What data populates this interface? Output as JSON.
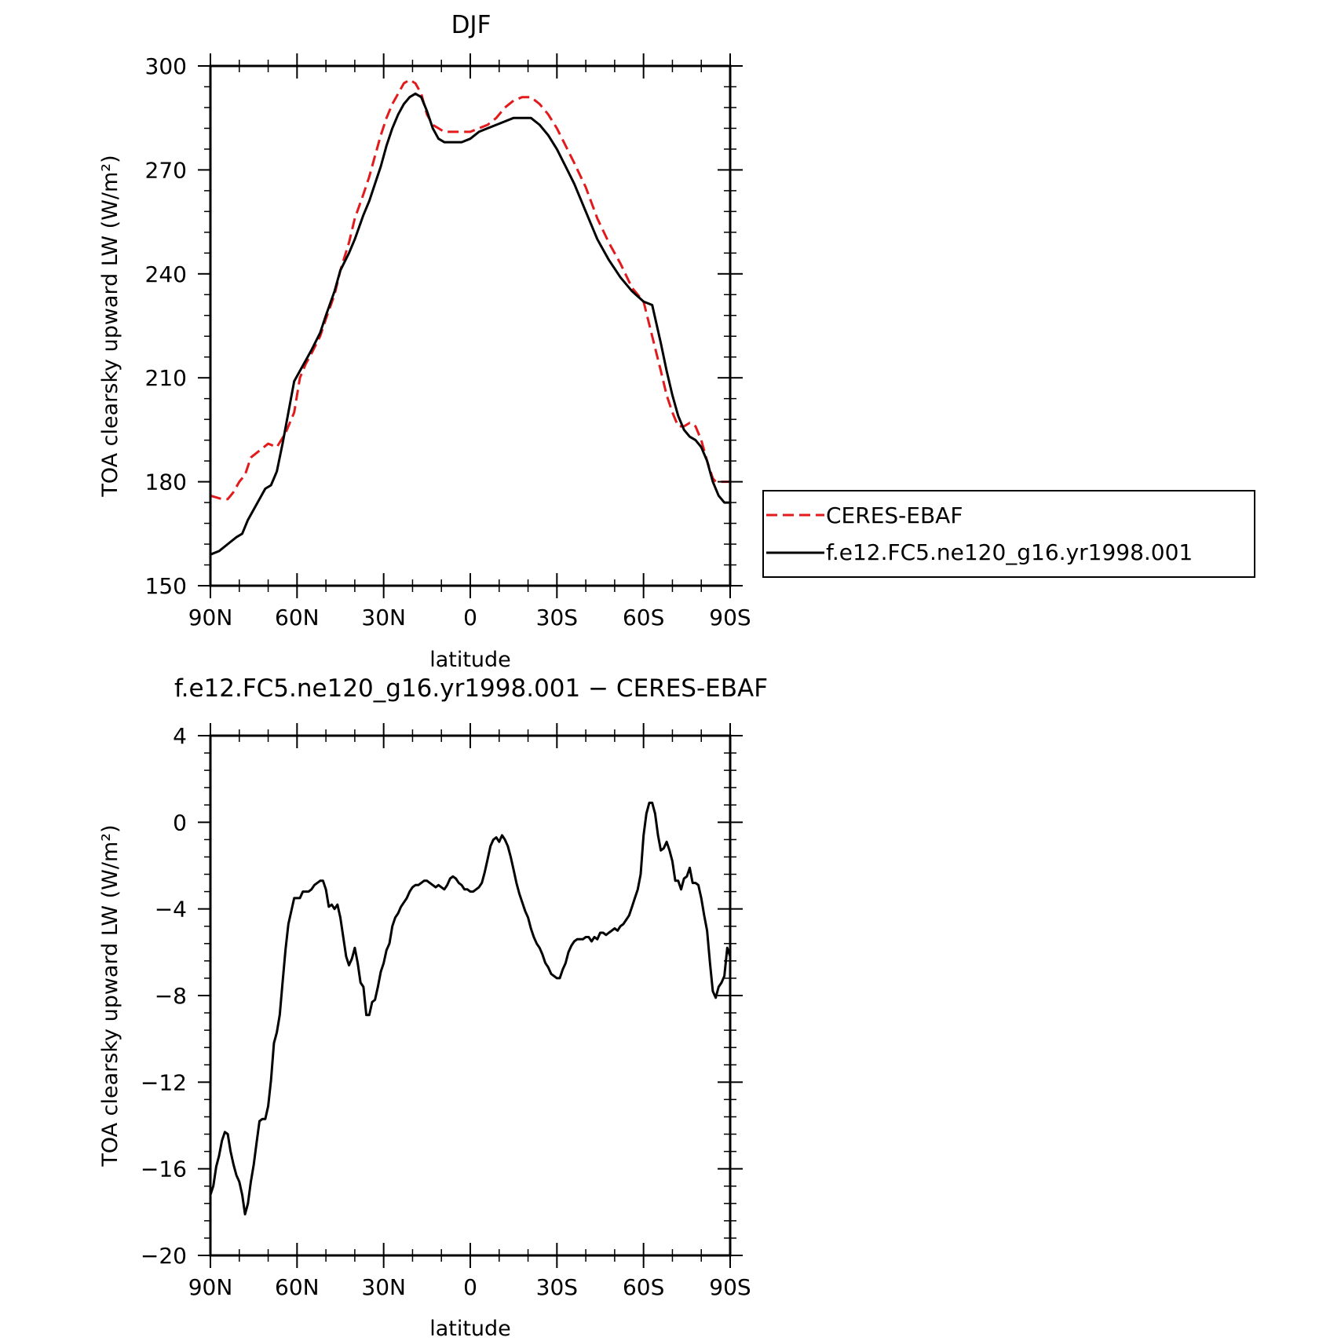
{
  "chart_data": [
    {
      "type": "line",
      "title": "DJF",
      "xlabel": "latitude",
      "ylabel": "TOA clearsky upward LW (W/m²)",
      "xlim": [
        -90,
        90
      ],
      "ylim": [
        150,
        300
      ],
      "xticks": [
        -90,
        -60,
        -30,
        0,
        30,
        60,
        90
      ],
      "xticklabels": [
        "90N",
        "60N",
        "30N",
        "0",
        "30S",
        "60S",
        "90S"
      ],
      "yticks": [
        150,
        180,
        210,
        240,
        270,
        300
      ],
      "yticklabels": [
        "150",
        "180",
        "210",
        "240",
        "270",
        "300"
      ],
      "legend": {
        "placement": "right, outside"
      },
      "series": [
        {
          "name": "CERES-EBAF",
          "color": "#e31a1c",
          "dash": "dashed",
          "x": [
            -90,
            -86,
            -84,
            -82,
            -80,
            -78,
            -76,
            -73,
            -70,
            -67,
            -64,
            -61,
            -59,
            -57,
            -55,
            -52,
            -50,
            -47,
            -45,
            -42,
            -40,
            -37,
            -35,
            -33,
            -31,
            -29,
            -27,
            -25,
            -23,
            -21,
            -19,
            -17,
            -15,
            -13,
            -11,
            -9,
            -7,
            -5,
            -3,
            0,
            3,
            6,
            9,
            12,
            15,
            18,
            21,
            24,
            27,
            30,
            33,
            36,
            40,
            44,
            48,
            52,
            56,
            60,
            63,
            66,
            68,
            70,
            72,
            74,
            76,
            78,
            80,
            82,
            84,
            85,
            86,
            87,
            88,
            90
          ],
          "y": [
            176,
            175,
            175,
            177,
            180,
            182,
            187,
            189,
            191,
            190,
            194,
            200,
            210,
            214,
            217,
            222,
            227,
            234,
            241,
            249,
            256,
            263,
            268,
            274,
            280,
            285,
            289,
            292,
            295,
            296,
            295,
            292,
            286,
            283,
            282,
            281,
            281,
            281,
            281,
            281,
            282,
            283,
            285,
            288,
            290,
            291,
            291,
            289,
            286,
            282,
            277,
            272,
            265,
            256,
            249,
            243,
            236,
            232,
            222,
            212,
            205,
            200,
            196,
            196,
            197,
            196,
            192,
            186,
            181,
            180,
            180,
            180,
            180,
            180
          ]
        },
        {
          "name": "f.e12.FC5.ne120_g16.yr1998.001",
          "color": "#000000",
          "dash": "solid",
          "x": [
            -90,
            -87,
            -84,
            -81,
            -79,
            -77,
            -75,
            -73,
            -71,
            -69,
            -67,
            -65,
            -63,
            -61,
            -59,
            -57,
            -55,
            -52,
            -50,
            -47,
            -45,
            -42,
            -40,
            -37,
            -35,
            -33,
            -31,
            -29,
            -27,
            -25,
            -23,
            -21,
            -19,
            -17,
            -15,
            -13,
            -11,
            -9,
            -7,
            -5,
            -3,
            0,
            3,
            6,
            9,
            12,
            15,
            18,
            21,
            24,
            27,
            30,
            33,
            36,
            40,
            44,
            48,
            52,
            56,
            60,
            63,
            66,
            68,
            70,
            72,
            74,
            76,
            78,
            80,
            82,
            84,
            86,
            88,
            90
          ],
          "y": [
            159,
            160,
            162,
            164,
            165,
            169,
            172,
            175,
            178,
            179,
            183,
            191,
            200,
            209,
            212,
            215,
            218,
            223,
            228,
            235,
            241,
            246,
            250,
            257,
            261,
            266,
            271,
            277,
            282,
            286,
            289,
            291,
            292,
            291,
            287,
            282,
            279,
            278,
            278,
            278,
            278,
            279,
            281,
            282,
            283,
            284,
            285,
            285,
            285,
            283,
            280,
            276,
            271,
            266,
            258,
            250,
            244,
            239,
            235,
            232,
            231,
            220,
            212,
            205,
            199,
            195,
            193,
            192,
            190,
            186,
            180,
            176,
            174,
            174
          ]
        }
      ]
    },
    {
      "type": "line",
      "title": "f.e12.FC5.ne120_g16.yr1998.001 - CERES-EBAF",
      "xlabel": "latitude",
      "ylabel": "TOA clearsky upward LW (W/m²)",
      "xlim": [
        -90,
        90
      ],
      "ylim": [
        -20,
        4
      ],
      "xticks": [
        -90,
        -60,
        -30,
        0,
        30,
        60,
        90
      ],
      "xticklabels": [
        "90N",
        "60N",
        "30N",
        "0",
        "30S",
        "60S",
        "90S"
      ],
      "yticks": [
        -20,
        -16,
        -12,
        -8,
        -4,
        0,
        4
      ],
      "yticklabels": [
        "-20",
        "-16",
        "-12",
        "-8",
        "-4",
        "0",
        "4"
      ],
      "series": [
        {
          "color": "#000000",
          "dash": "solid",
          "x": [
            -90,
            -89,
            -88,
            -87,
            -86,
            -85,
            -84,
            -83,
            -82,
            -81,
            -80,
            -79,
            -78,
            -77,
            -76,
            -75,
            -74,
            -73,
            -72,
            -71,
            -70,
            -69,
            -68,
            -67,
            -66,
            -65,
            -64,
            -63,
            -62,
            -61,
            -60,
            -59,
            -58,
            -57,
            -56,
            -55,
            -54,
            -53,
            -52,
            -51,
            -50,
            -49,
            -48,
            -47,
            -46,
            -45,
            -44,
            -43,
            -42,
            -41,
            -40,
            -39,
            -38,
            -37,
            -36,
            -35,
            -34,
            -33,
            -32,
            -31,
            -30,
            -29,
            -28,
            -27,
            -26,
            -25,
            -24,
            -23,
            -22,
            -21,
            -20,
            -19,
            -18,
            -17,
            -16,
            -15,
            -14,
            -13,
            -12,
            -11,
            -10,
            -9,
            -8,
            -7,
            -6,
            -5,
            -4,
            -3,
            -2,
            -1,
            0,
            1,
            2,
            3,
            4,
            5,
            6,
            7,
            8,
            9,
            10,
            11,
            12,
            13,
            14,
            15,
            16,
            17,
            18,
            19,
            20,
            21,
            22,
            23,
            24,
            25,
            26,
            27,
            28,
            29,
            30,
            31,
            32,
            33,
            34,
            35,
            36,
            37,
            38,
            39,
            40,
            41,
            42,
            43,
            44,
            45,
            46,
            47,
            48,
            49,
            50,
            51,
            52,
            53,
            54,
            55,
            56,
            57,
            58,
            59,
            60,
            61,
            62,
            63,
            64,
            65,
            66,
            67,
            68,
            69,
            70,
            71,
            72,
            73,
            74,
            75,
            76,
            77,
            78,
            79,
            80,
            81,
            82,
            83,
            84,
            85,
            86,
            87,
            88,
            89,
            90
          ],
          "y": [
            -17.2,
            -16.8,
            -15.9,
            -15.4,
            -14.7,
            -14.3,
            -14.4,
            -15.2,
            -15.8,
            -16.3,
            -16.6,
            -17.2,
            -18.1,
            -17.6,
            -16.6,
            -15.8,
            -14.8,
            -13.8,
            -13.7,
            -13.7,
            -13.1,
            -11.9,
            -10.2,
            -9.7,
            -8.9,
            -7.4,
            -5.9,
            -4.7,
            -4.1,
            -3.5,
            -3.5,
            -3.5,
            -3.2,
            -3.2,
            -3.2,
            -3.1,
            -2.9,
            -2.8,
            -2.7,
            -2.7,
            -3.1,
            -3.9,
            -3.8,
            -4.0,
            -3.8,
            -4.4,
            -5.3,
            -6.2,
            -6.6,
            -6.3,
            -5.8,
            -6.5,
            -7.4,
            -7.6,
            -8.9,
            -8.9,
            -8.3,
            -8.2,
            -7.6,
            -6.9,
            -6.5,
            -5.9,
            -5.6,
            -4.8,
            -4.4,
            -4.2,
            -3.9,
            -3.7,
            -3.5,
            -3.2,
            -3.0,
            -2.9,
            -2.9,
            -2.8,
            -2.7,
            -2.7,
            -2.8,
            -2.9,
            -3.0,
            -2.9,
            -3.0,
            -3.1,
            -2.9,
            -2.6,
            -2.5,
            -2.6,
            -2.8,
            -2.9,
            -3.1,
            -3.1,
            -3.2,
            -3.2,
            -3.1,
            -3.0,
            -2.8,
            -2.3,
            -1.7,
            -1.1,
            -0.8,
            -0.7,
            -0.9,
            -0.6,
            -0.8,
            -1.1,
            -1.6,
            -2.2,
            -2.8,
            -3.3,
            -3.7,
            -4.1,
            -4.4,
            -4.9,
            -5.3,
            -5.6,
            -5.8,
            -6.1,
            -6.5,
            -6.7,
            -7.0,
            -7.1,
            -7.2,
            -7.2,
            -6.8,
            -6.5,
            -6.0,
            -5.7,
            -5.5,
            -5.4,
            -5.4,
            -5.4,
            -5.3,
            -5.3,
            -5.5,
            -5.3,
            -5.4,
            -5.1,
            -5.1,
            -5.2,
            -5.1,
            -5.0,
            -4.9,
            -5.0,
            -4.8,
            -4.7,
            -4.5,
            -4.3,
            -3.9,
            -3.5,
            -3.1,
            -2.4,
            -0.6,
            0.4,
            0.9,
            0.9,
            0.4,
            -0.6,
            -1.3,
            -1.2,
            -0.9,
            -1.3,
            -1.8,
            -2.7,
            -2.7,
            -3.1,
            -2.6,
            -2.5,
            -2.1,
            -2.8,
            -2.8,
            -2.9,
            -3.5,
            -4.3,
            -5.0,
            -6.5,
            -7.8,
            -8.1,
            -7.6,
            -7.4,
            -7.1,
            -5.8,
            -6.2
          ]
        }
      ]
    }
  ]
}
